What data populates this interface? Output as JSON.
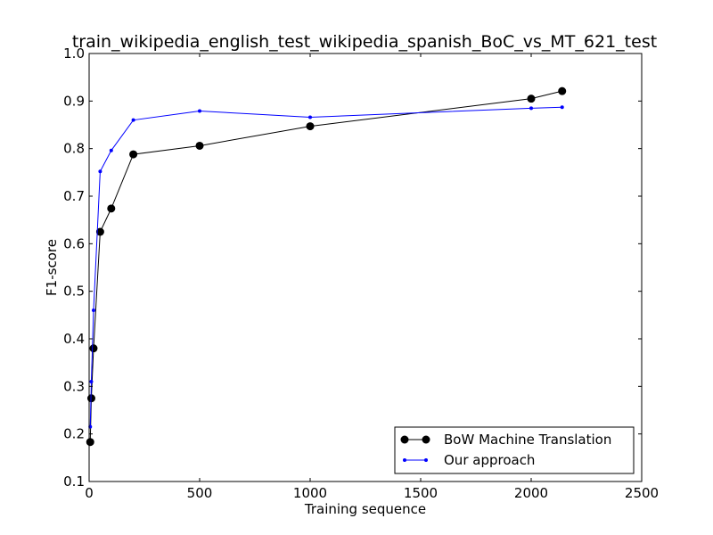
{
  "chart_data": {
    "type": "line",
    "title": "train_wikipedia_english_test_wikipedia_spanish_BoC_vs_MT_621_test",
    "xlabel": "Training sequence",
    "ylabel": "F1-score",
    "xlim": [
      0,
      2500
    ],
    "ylim": [
      0.1,
      1.0
    ],
    "xticks": [
      0,
      500,
      1000,
      1500,
      2000,
      2500
    ],
    "xtick_labels": [
      "0",
      "500",
      "1000",
      "1500",
      "2000",
      "2500"
    ],
    "yticks": [
      0.1,
      0.2,
      0.3,
      0.4,
      0.5,
      0.6,
      0.7,
      0.8,
      0.9,
      1.0
    ],
    "ytick_labels": [
      "0.1",
      "0.2",
      "0.3",
      "0.4",
      "0.5",
      "0.6",
      "0.7",
      "0.8",
      "0.9",
      "1.0"
    ],
    "grid": false,
    "legend_position": "bottom-right",
    "series": [
      {
        "name": "BoW Machine Translation",
        "color": "#000000",
        "marker": "large-circle",
        "x": [
          5,
          10,
          20,
          50,
          100,
          200,
          500,
          1000,
          2000,
          2140
        ],
        "y": [
          0.183,
          0.275,
          0.38,
          0.625,
          0.674,
          0.788,
          0.806,
          0.847,
          0.905,
          0.921
        ]
      },
      {
        "name": "Our approach",
        "color": "#0000ff",
        "marker": "small-dot",
        "x": [
          5,
          10,
          20,
          50,
          100,
          200,
          500,
          1000,
          2000,
          2140
        ],
        "y": [
          0.215,
          0.31,
          0.46,
          0.752,
          0.796,
          0.86,
          0.879,
          0.866,
          0.885,
          0.887
        ]
      }
    ]
  }
}
